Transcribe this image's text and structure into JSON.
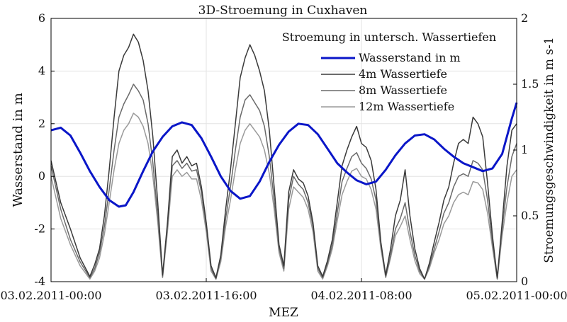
{
  "chart_data": {
    "type": "line",
    "title": "3D-Stroemung in Cuxhaven",
    "xlabel": "MEZ",
    "ylabel_left": "Wasserstand in m",
    "ylabel_right": "Stroemungsgeschwindigkeit in m s-1",
    "x_unit": "hours since first tick",
    "xlim": [
      0,
      48
    ],
    "ylim_left": [
      -4,
      6
    ],
    "ylim_right": [
      0,
      2
    ],
    "x_ticks": [
      {
        "x": 0,
        "label": "03.02.2011-00:00"
      },
      {
        "x": 16,
        "label": "03.02.2011-16:00"
      },
      {
        "x": 32,
        "label": "04.02.2011-08:00"
      },
      {
        "x": 48,
        "label": "05.02.2011-00:00"
      }
    ],
    "y_ticks_left": [
      -4,
      -2,
      0,
      2,
      4,
      6
    ],
    "y_ticks_right": [
      "0",
      "0.5",
      "1",
      "1.5",
      "2"
    ],
    "grid": true,
    "legend_title": "Stroemung in untersch. Wassertiefen",
    "legend_position": "top-right",
    "colors": {
      "wasserstand": "#0a16c8",
      "d4": "#3a3a3a",
      "d8": "#6a6a6a",
      "d12": "#9a9a9a"
    },
    "series": [
      {
        "name": "Wasserstand in m",
        "axis": "left",
        "color_key": "wasserstand",
        "x": [
          0,
          1,
          2,
          3,
          4,
          5,
          6,
          7,
          7.7,
          8.5,
          9.5,
          10.5,
          11.5,
          12.5,
          13.5,
          14.5,
          15.5,
          16.5,
          17.5,
          18.5,
          19.5,
          20.5,
          21.5,
          22.5,
          23.5,
          24.5,
          25.5,
          26.5,
          27.5,
          28.5,
          29.5,
          30.5,
          31.5,
          32.5,
          33.5,
          34.5,
          35.5,
          36.5,
          37.5,
          38.5,
          39.5,
          40.5,
          41.5,
          42.5,
          43.5,
          44.5,
          45.5,
          46.5,
          47.5,
          48
        ],
        "y": [
          1.75,
          1.85,
          1.55,
          0.9,
          0.2,
          -0.4,
          -0.9,
          -1.15,
          -1.1,
          -0.6,
          0.2,
          0.95,
          1.5,
          1.9,
          2.05,
          1.95,
          1.45,
          0.75,
          0.0,
          -0.55,
          -0.85,
          -0.75,
          -0.2,
          0.55,
          1.2,
          1.7,
          2.0,
          1.95,
          1.6,
          1.05,
          0.5,
          0.15,
          -0.15,
          -0.3,
          -0.2,
          0.25,
          0.8,
          1.25,
          1.55,
          1.6,
          1.4,
          1.05,
          0.75,
          0.5,
          0.35,
          0.2,
          0.3,
          0.85,
          2.2,
          2.8
        ]
      },
      {
        "name": "4m Wassertiefe",
        "axis": "right",
        "color_key": "d4",
        "x": [
          0,
          1,
          2,
          3,
          4,
          4.5,
          5,
          5.5,
          6,
          6.5,
          7,
          7.5,
          8,
          8.5,
          9,
          9.5,
          10,
          10.5,
          11,
          11.5,
          12,
          12.5,
          13,
          13.5,
          14,
          14.5,
          15,
          15.5,
          16,
          16.5,
          17,
          17.5,
          18,
          18.5,
          19,
          19.5,
          20,
          20.5,
          21,
          21.5,
          22,
          22.5,
          23,
          23.5,
          24,
          24.5,
          25,
          25.5,
          26,
          26.5,
          27,
          27.5,
          28,
          28.5,
          29,
          29.5,
          30,
          30.5,
          31,
          31.5,
          32,
          32.5,
          33,
          33.5,
          34,
          34.5,
          35,
          35.5,
          36,
          36.5,
          37,
          37.5,
          38,
          38.5,
          39,
          39.5,
          40,
          40.5,
          41,
          41.5,
          42,
          42.5,
          43,
          43.5,
          44,
          44.5,
          45,
          45.5,
          46,
          46.5,
          47,
          47.5,
          48
        ],
        "y": [
          0.92,
          0.6,
          0.4,
          0.18,
          0.04,
          0.13,
          0.25,
          0.5,
          0.85,
          1.25,
          1.6,
          1.72,
          1.78,
          1.88,
          1.82,
          1.68,
          1.45,
          1.1,
          0.6,
          0.05,
          0.45,
          0.95,
          1.0,
          0.9,
          0.95,
          0.88,
          0.9,
          0.72,
          0.45,
          0.12,
          0.03,
          0.2,
          0.55,
          0.85,
          1.2,
          1.55,
          1.7,
          1.8,
          1.72,
          1.6,
          1.45,
          1.15,
          0.72,
          0.28,
          0.12,
          0.68,
          0.85,
          0.78,
          0.75,
          0.65,
          0.45,
          0.12,
          0.04,
          0.16,
          0.32,
          0.6,
          0.88,
          1.0,
          1.1,
          1.18,
          1.05,
          1.02,
          0.92,
          0.7,
          0.3,
          0.05,
          0.25,
          0.5,
          0.62,
          0.85,
          0.5,
          0.25,
          0.1,
          0.02,
          0.14,
          0.3,
          0.45,
          0.62,
          0.72,
          0.9,
          1.05,
          1.08,
          1.05,
          1.25,
          1.2,
          1.1,
          0.75,
          0.35,
          0.03,
          0.45,
          0.88,
          1.15,
          1.2
        ]
      },
      {
        "name": "8m Wassertiefe",
        "axis": "right",
        "color_key": "d8",
        "x": [
          0,
          1,
          2,
          3,
          4,
          4.5,
          5,
          5.5,
          6,
          6.5,
          7,
          7.5,
          8,
          8.5,
          9,
          9.5,
          10,
          10.5,
          11,
          11.5,
          12,
          12.5,
          13,
          13.5,
          14,
          14.5,
          15,
          15.5,
          16,
          16.5,
          17,
          17.5,
          18,
          18.5,
          19,
          19.5,
          20,
          20.5,
          21,
          21.5,
          22,
          22.5,
          23,
          23.5,
          24,
          24.5,
          25,
          25.5,
          26,
          26.5,
          27,
          27.5,
          28,
          28.5,
          29,
          29.5,
          30,
          30.5,
          31,
          31.5,
          32,
          32.5,
          33,
          33.5,
          34,
          34.5,
          35,
          35.5,
          36,
          36.5,
          37,
          37.5,
          38,
          38.5,
          39,
          39.5,
          40,
          40.5,
          41,
          41.5,
          42,
          42.5,
          43,
          43.5,
          44,
          44.5,
          45,
          45.5,
          46,
          46.5,
          47,
          47.5,
          48
        ],
        "y": [
          0.88,
          0.55,
          0.32,
          0.15,
          0.03,
          0.1,
          0.22,
          0.42,
          0.7,
          1.0,
          1.25,
          1.35,
          1.42,
          1.5,
          1.45,
          1.38,
          1.2,
          0.9,
          0.5,
          0.04,
          0.42,
          0.88,
          0.92,
          0.86,
          0.9,
          0.84,
          0.85,
          0.68,
          0.42,
          0.1,
          0.02,
          0.18,
          0.48,
          0.72,
          1.0,
          1.25,
          1.38,
          1.42,
          1.36,
          1.3,
          1.18,
          0.95,
          0.62,
          0.25,
          0.1,
          0.62,
          0.8,
          0.74,
          0.7,
          0.6,
          0.42,
          0.1,
          0.03,
          0.14,
          0.28,
          0.52,
          0.76,
          0.86,
          0.95,
          0.98,
          0.9,
          0.86,
          0.78,
          0.62,
          0.28,
          0.04,
          0.2,
          0.4,
          0.48,
          0.6,
          0.38,
          0.2,
          0.08,
          0.02,
          0.12,
          0.25,
          0.38,
          0.52,
          0.6,
          0.72,
          0.8,
          0.82,
          0.8,
          0.92,
          0.9,
          0.85,
          0.62,
          0.3,
          0.02,
          0.4,
          0.72,
          0.95,
          1.05
        ]
      },
      {
        "name": "12m Wassertiefe",
        "axis": "right",
        "color_key": "d12",
        "x": [
          0,
          1,
          2,
          3,
          4,
          4.5,
          5,
          5.5,
          6,
          6.5,
          7,
          7.5,
          8,
          8.5,
          9,
          9.5,
          10,
          10.5,
          11,
          11.5,
          12,
          12.5,
          13,
          13.5,
          14,
          14.5,
          15,
          15.5,
          16,
          16.5,
          17,
          17.5,
          18,
          18.5,
          19,
          19.5,
          20,
          20.5,
          21,
          21.5,
          22,
          22.5,
          23,
          23.5,
          24,
          24.5,
          25,
          25.5,
          26,
          26.5,
          27,
          27.5,
          28,
          28.5,
          29,
          29.5,
          30,
          30.5,
          31,
          31.5,
          32,
          32.5,
          33,
          33.5,
          34,
          34.5,
          35,
          35.5,
          36,
          36.5,
          37,
          37.5,
          38,
          38.5,
          39,
          39.5,
          40,
          40.5,
          41,
          41.5,
          42,
          42.5,
          43,
          43.5,
          44,
          44.5,
          45,
          45.5,
          46,
          46.5,
          47,
          47.5,
          48
        ],
        "y": [
          0.8,
          0.48,
          0.28,
          0.12,
          0.02,
          0.08,
          0.18,
          0.36,
          0.6,
          0.85,
          1.05,
          1.15,
          1.2,
          1.28,
          1.25,
          1.18,
          1.05,
          0.8,
          0.45,
          0.03,
          0.38,
          0.8,
          0.85,
          0.8,
          0.83,
          0.78,
          0.78,
          0.62,
          0.38,
          0.08,
          0.02,
          0.15,
          0.42,
          0.62,
          0.85,
          1.05,
          1.15,
          1.2,
          1.15,
          1.1,
          1.0,
          0.82,
          0.55,
          0.22,
          0.08,
          0.55,
          0.72,
          0.68,
          0.64,
          0.55,
          0.38,
          0.08,
          0.02,
          0.12,
          0.25,
          0.46,
          0.66,
          0.76,
          0.84,
          0.86,
          0.8,
          0.78,
          0.7,
          0.55,
          0.25,
          0.03,
          0.18,
          0.35,
          0.42,
          0.5,
          0.32,
          0.16,
          0.06,
          0.02,
          0.1,
          0.22,
          0.32,
          0.44,
          0.5,
          0.6,
          0.66,
          0.68,
          0.66,
          0.76,
          0.75,
          0.7,
          0.52,
          0.26,
          0.02,
          0.35,
          0.6,
          0.8,
          0.85
        ]
      }
    ]
  }
}
